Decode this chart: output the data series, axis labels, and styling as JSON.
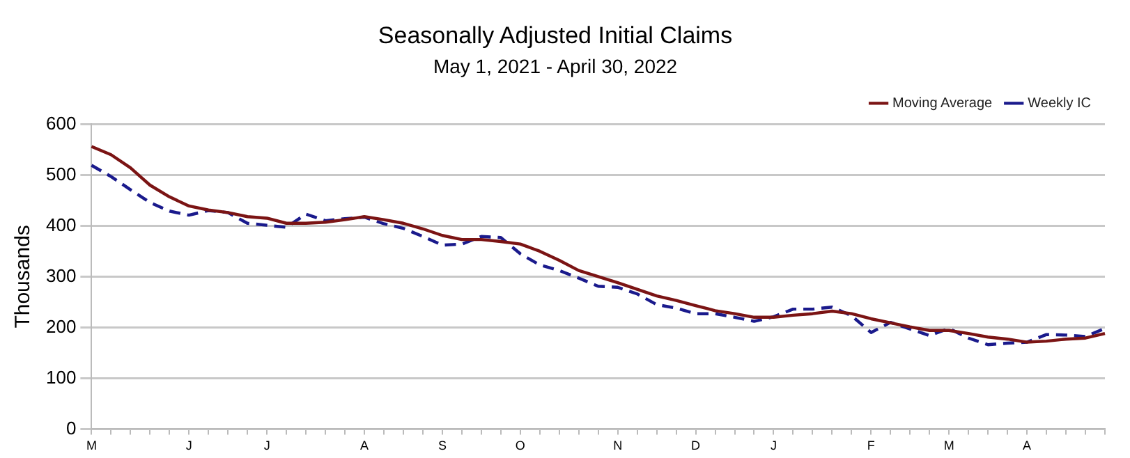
{
  "chart_data": {
    "type": "line",
    "title": "Seasonally Adjusted Initial Claims",
    "subtitle": "May 1, 2021 - April 30, 2022",
    "ylabel": "Thousands",
    "categories": [
      "M",
      null,
      null,
      null,
      null,
      "J",
      null,
      null,
      null,
      "J",
      null,
      null,
      null,
      null,
      "A",
      null,
      null,
      null,
      "S",
      null,
      null,
      null,
      "O",
      null,
      null,
      null,
      null,
      "N",
      null,
      null,
      null,
      "D",
      null,
      null,
      null,
      "J",
      null,
      null,
      null,
      null,
      "F",
      null,
      null,
      null,
      "M",
      null,
      null,
      null,
      "A",
      null,
      null,
      null,
      null
    ],
    "series": [
      {
        "name": "Moving Average",
        "color": "#7b1414",
        "line_style": "solid",
        "values": [
          556,
          540,
          514,
          480,
          457,
          439,
          431,
          426,
          418,
          415,
          405,
          405,
          407,
          412,
          418,
          412,
          405,
          394,
          381,
          373,
          373,
          369,
          364,
          350,
          332,
          312,
          300,
          288,
          275,
          262,
          253,
          243,
          233,
          227,
          220,
          220,
          224,
          227,
          232,
          227,
          217,
          209,
          201,
          194,
          194,
          188,
          181,
          177,
          171,
          173,
          177,
          179,
          188
        ]
      },
      {
        "name": "Weekly IC",
        "color": "#1a1a8c",
        "line_style": "dashed",
        "values": [
          519,
          497,
          471,
          446,
          429,
          421,
          430,
          426,
          405,
          401,
          397,
          423,
          410,
          414,
          417,
          404,
          395,
          379,
          362,
          364,
          379,
          377,
          345,
          323,
          312,
          297,
          281,
          279,
          266,
          245,
          238,
          227,
          227,
          220,
          212,
          221,
          236,
          236,
          240,
          223,
          190,
          210,
          197,
          184,
          198,
          179,
          166,
          169,
          171,
          186,
          185,
          182,
          198
        ]
      }
    ],
    "ylim": [
      0,
      600
    ],
    "yticks": [
      0,
      100,
      200,
      300,
      400,
      500,
      600
    ],
    "grid": "y",
    "legend": "top right",
    "marker": "none"
  }
}
